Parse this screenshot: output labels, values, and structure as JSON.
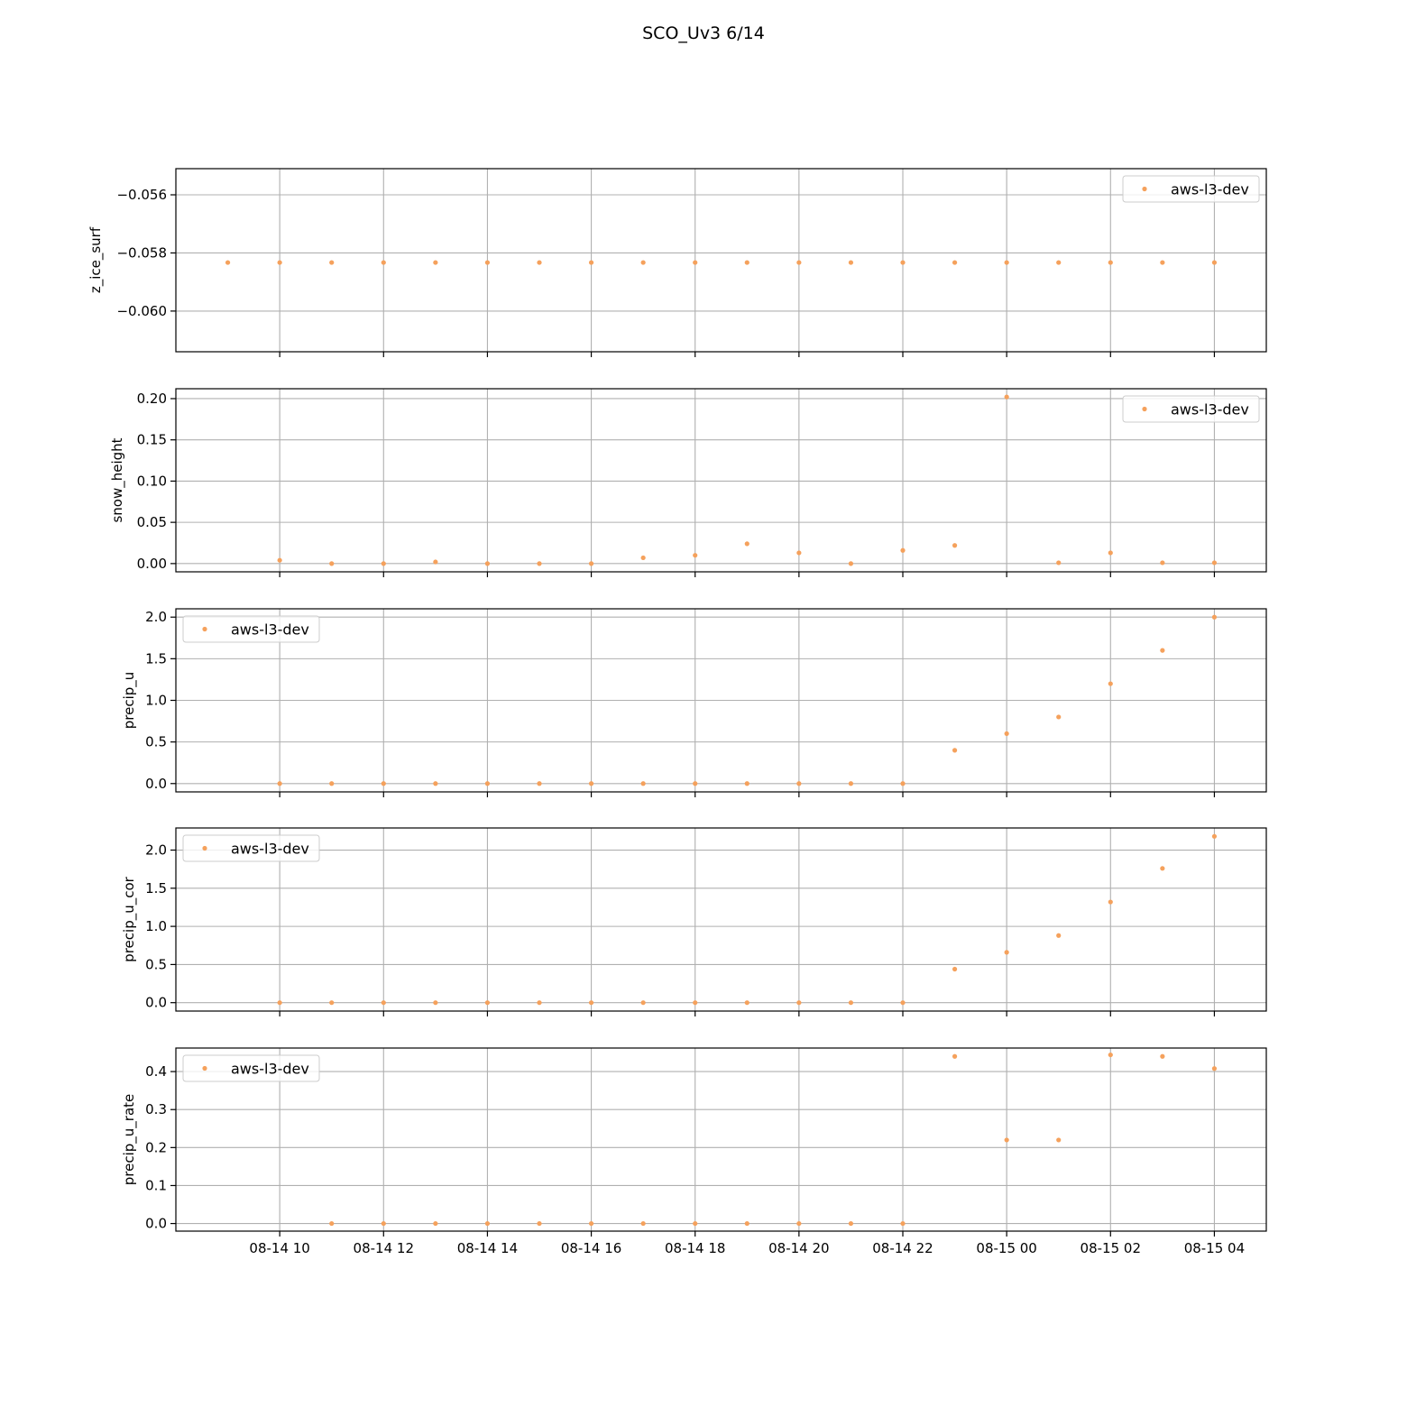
{
  "figure": {
    "title": "SCO_Uv3 6/14"
  },
  "colors": {
    "series": "#f5a15c",
    "grid": "#b0b0b0",
    "axis": "#000000",
    "legend_border": "#cccccc"
  },
  "chart_data": [
    {
      "type": "scatter",
      "ylabel": "z_ice_surf",
      "xlabel": "",
      "xlim": [
        "2024-08-14 08:00",
        "2024-08-15 05:00"
      ],
      "x_ticks": [
        "08-14 10",
        "08-14 12",
        "08-14 14",
        "08-14 16",
        "08-14 18",
        "08-14 20",
        "08-14 22",
        "08-15 00",
        "08-15 02",
        "08-15 04"
      ],
      "x_tick_labels_visible": false,
      "ylim": [
        -0.0614,
        -0.0551
      ],
      "y_ticks": [
        -0.056,
        -0.058,
        -0.06
      ],
      "y_tick_labels": [
        "−0.056",
        "−0.058",
        "−0.060"
      ],
      "grid": true,
      "legend": {
        "position": "top-right",
        "entries": [
          "aws-l3-dev"
        ]
      },
      "series": [
        {
          "name": "aws-l3-dev",
          "x": [
            "08-14 09",
            "08-14 10",
            "08-14 11",
            "08-14 12",
            "08-14 13",
            "08-14 14",
            "08-14 15",
            "08-14 16",
            "08-14 17",
            "08-14 18",
            "08-14 19",
            "08-14 20",
            "08-14 21",
            "08-14 22",
            "08-14 23",
            "08-15 00",
            "08-15 01",
            "08-15 02",
            "08-15 03",
            "08-15 04"
          ],
          "values": [
            -0.05833,
            -0.05833,
            -0.05833,
            -0.05833,
            -0.05833,
            -0.05833,
            -0.05833,
            -0.05833,
            -0.05833,
            -0.05833,
            -0.05833,
            -0.05833,
            -0.05833,
            -0.05833,
            -0.05833,
            -0.05833,
            -0.05833,
            -0.05833,
            -0.05833,
            -0.05833
          ]
        }
      ]
    },
    {
      "type": "scatter",
      "ylabel": "snow_height",
      "xlabel": "",
      "xlim": [
        "2024-08-14 08:00",
        "2024-08-15 05:00"
      ],
      "x_ticks": [
        "08-14 10",
        "08-14 12",
        "08-14 14",
        "08-14 16",
        "08-14 18",
        "08-14 20",
        "08-14 22",
        "08-15 00",
        "08-15 02",
        "08-15 04"
      ],
      "x_tick_labels_visible": false,
      "ylim": [
        -0.01,
        0.212
      ],
      "y_ticks": [
        0.0,
        0.05,
        0.1,
        0.15,
        0.2
      ],
      "y_tick_labels": [
        "0.00",
        "0.05",
        "0.10",
        "0.15",
        "0.20"
      ],
      "grid": true,
      "legend": {
        "position": "top-right",
        "entries": [
          "aws-l3-dev"
        ]
      },
      "series": [
        {
          "name": "aws-l3-dev",
          "x": [
            "08-14 10",
            "08-14 11",
            "08-14 12",
            "08-14 13",
            "08-14 14",
            "08-14 15",
            "08-14 16",
            "08-14 17",
            "08-14 18",
            "08-14 19",
            "08-14 20",
            "08-14 21",
            "08-14 22",
            "08-14 23",
            "08-15 00",
            "08-15 01",
            "08-15 02",
            "08-15 03",
            "08-15 04"
          ],
          "values": [
            0.004,
            0.0,
            0.0,
            0.002,
            0.0,
            0.0,
            0.0,
            0.007,
            0.01,
            0.024,
            0.013,
            0.0,
            0.016,
            0.022,
            0.202,
            0.001,
            0.013,
            0.001,
            0.001
          ]
        }
      ]
    },
    {
      "type": "scatter",
      "ylabel": "precip_u",
      "xlabel": "",
      "xlim": [
        "2024-08-14 08:00",
        "2024-08-15 05:00"
      ],
      "x_ticks": [
        "08-14 10",
        "08-14 12",
        "08-14 14",
        "08-14 16",
        "08-14 18",
        "08-14 20",
        "08-14 22",
        "08-15 00",
        "08-15 02",
        "08-15 04"
      ],
      "x_tick_labels_visible": false,
      "ylim": [
        -0.1,
        2.1
      ],
      "y_ticks": [
        0.0,
        0.5,
        1.0,
        1.5,
        2.0
      ],
      "y_tick_labels": [
        "0.0",
        "0.5",
        "1.0",
        "1.5",
        "2.0"
      ],
      "grid": true,
      "legend": {
        "position": "top-left",
        "entries": [
          "aws-l3-dev"
        ]
      },
      "series": [
        {
          "name": "aws-l3-dev",
          "x": [
            "08-14 10",
            "08-14 11",
            "08-14 12",
            "08-14 13",
            "08-14 14",
            "08-14 15",
            "08-14 16",
            "08-14 17",
            "08-14 18",
            "08-14 19",
            "08-14 20",
            "08-14 21",
            "08-14 22",
            "08-14 23",
            "08-15 00",
            "08-15 01",
            "08-15 02",
            "08-15 03",
            "08-15 04"
          ],
          "values": [
            0.0,
            0.0,
            0.0,
            0.0,
            0.0,
            0.0,
            0.0,
            0.0,
            0.0,
            0.0,
            0.0,
            0.0,
            0.0,
            0.4,
            0.6,
            0.8,
            1.2,
            1.6,
            2.0
          ]
        }
      ]
    },
    {
      "type": "scatter",
      "ylabel": "precip_u_cor",
      "xlabel": "",
      "xlim": [
        "2024-08-14 08:00",
        "2024-08-15 05:00"
      ],
      "x_ticks": [
        "08-14 10",
        "08-14 12",
        "08-14 14",
        "08-14 16",
        "08-14 18",
        "08-14 20",
        "08-14 22",
        "08-15 00",
        "08-15 02",
        "08-15 04"
      ],
      "x_tick_labels_visible": false,
      "ylim": [
        -0.11,
        2.29
      ],
      "y_ticks": [
        0.0,
        0.5,
        1.0,
        1.5,
        2.0
      ],
      "y_tick_labels": [
        "0.0",
        "0.5",
        "1.0",
        "1.5",
        "2.0"
      ],
      "grid": true,
      "legend": {
        "position": "top-left",
        "entries": [
          "aws-l3-dev"
        ]
      },
      "series": [
        {
          "name": "aws-l3-dev",
          "x": [
            "08-14 10",
            "08-14 11",
            "08-14 12",
            "08-14 13",
            "08-14 14",
            "08-14 15",
            "08-14 16",
            "08-14 17",
            "08-14 18",
            "08-14 19",
            "08-14 20",
            "08-14 21",
            "08-14 22",
            "08-14 23",
            "08-15 00",
            "08-15 01",
            "08-15 02",
            "08-15 03",
            "08-15 04"
          ],
          "values": [
            0.0,
            0.0,
            0.0,
            0.0,
            0.0,
            0.0,
            0.0,
            0.0,
            0.0,
            0.0,
            0.0,
            0.0,
            0.0,
            0.44,
            0.66,
            0.88,
            1.32,
            1.76,
            2.18
          ]
        }
      ]
    },
    {
      "type": "scatter",
      "ylabel": "precip_u_rate",
      "xlabel": "",
      "xlim": [
        "2024-08-14 08:00",
        "2024-08-15 05:00"
      ],
      "x_ticks": [
        "08-14 10",
        "08-14 12",
        "08-14 14",
        "08-14 16",
        "08-14 18",
        "08-14 20",
        "08-14 22",
        "08-15 00",
        "08-15 02",
        "08-15 04"
      ],
      "x_tick_labels_visible": true,
      "ylim": [
        -0.02,
        0.462
      ],
      "y_ticks": [
        0.0,
        0.1,
        0.2,
        0.3,
        0.4
      ],
      "y_tick_labels": [
        "0.0",
        "0.1",
        "0.2",
        "0.3",
        "0.4"
      ],
      "grid": true,
      "legend": {
        "position": "top-left",
        "entries": [
          "aws-l3-dev"
        ]
      },
      "series": [
        {
          "name": "aws-l3-dev",
          "x": [
            "08-14 11",
            "08-14 12",
            "08-14 13",
            "08-14 14",
            "08-14 15",
            "08-14 16",
            "08-14 17",
            "08-14 18",
            "08-14 19",
            "08-14 20",
            "08-14 21",
            "08-14 22",
            "08-14 23",
            "08-15 00",
            "08-15 01",
            "08-15 02",
            "08-15 03",
            "08-15 04"
          ],
          "values": [
            0.0,
            0.0,
            0.0,
            0.0,
            0.0,
            0.0,
            0.0,
            0.0,
            0.0,
            0.0,
            0.0,
            0.0,
            0.44,
            0.22,
            0.22,
            0.444,
            0.44,
            0.408
          ]
        }
      ]
    }
  ]
}
